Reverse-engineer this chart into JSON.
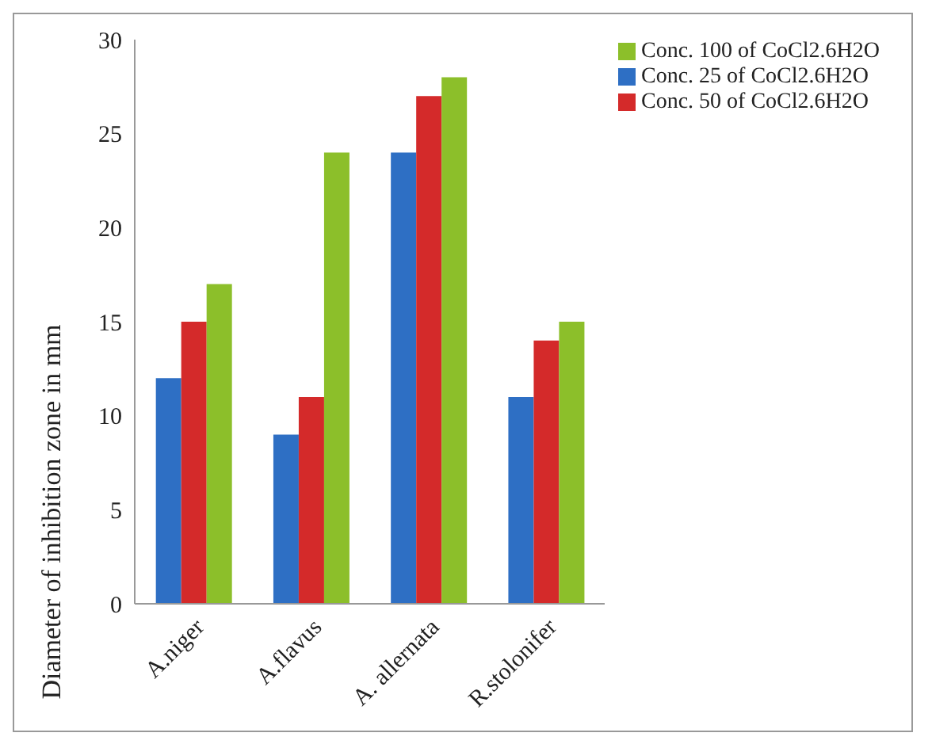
{
  "chart_data": {
    "type": "bar",
    "ylabel": "Diameter of inhibition zone in mm",
    "categories": [
      "A.niger",
      "A.flavus",
      "A. allernata",
      "R.stolonifer"
    ],
    "series": [
      {
        "name": "Conc. 25 of CoCl2.6H2O",
        "color": "#2e6fc4",
        "values": [
          12,
          9,
          24,
          11
        ]
      },
      {
        "name": "Conc. 50 of CoCl2.6H2O",
        "color": "#d42a2a",
        "values": [
          15,
          11,
          27,
          14
        ]
      },
      {
        "name": "Conc. 100 of CoCl2.6H2O",
        "color": "#8cbf2a",
        "values": [
          17,
          24,
          28,
          15
        ]
      }
    ],
    "ylim": [
      0,
      30
    ],
    "yticks": [
      0,
      5,
      10,
      15,
      20,
      25,
      30
    ],
    "grid": false,
    "legend": "top right"
  }
}
